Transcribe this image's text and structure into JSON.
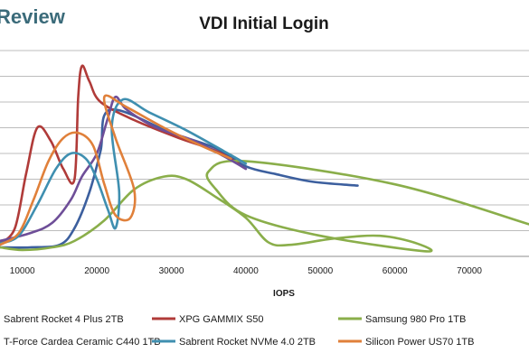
{
  "brand": {
    "label": "Review"
  },
  "chart_data": {
    "type": "line",
    "title": "VDI Initial Login",
    "xlabel": "IOPS",
    "ylabel": "",
    "xlim": [
      7000,
      78000
    ],
    "ylim": [
      0,
      8
    ],
    "x_ticks": [
      10000,
      20000,
      30000,
      40000,
      50000,
      60000,
      70000
    ],
    "y_gridlines": [
      0,
      1,
      2,
      3,
      4,
      5,
      6,
      7,
      8
    ],
    "grid": true,
    "legend_position": "bottom",
    "series": [
      {
        "name": "Sabrent Rocket 4 Plus 2TB",
        "color": "#3c5f9e",
        "points": [
          [
            7000,
            0.35
          ],
          [
            11000,
            0.35
          ],
          [
            15000,
            0.45
          ],
          [
            17000,
            1.1
          ],
          [
            19000,
            2.5
          ],
          [
            20500,
            4.1
          ],
          [
            21800,
            5.7
          ],
          [
            30000,
            4.8
          ],
          [
            36000,
            4.2
          ],
          [
            40000,
            3.5
          ],
          [
            44000,
            3.2
          ],
          [
            49000,
            2.9
          ],
          [
            55000,
            2.75
          ]
        ]
      },
      {
        "name": "XPG GAMMIX S50",
        "color": "#b03b39",
        "points": [
          [
            7000,
            0.5
          ],
          [
            9000,
            1.1
          ],
          [
            10500,
            3.2
          ],
          [
            12000,
            5.0
          ],
          [
            13800,
            4.5
          ],
          [
            15500,
            3.4
          ],
          [
            17000,
            3.0
          ],
          [
            17500,
            6.2
          ],
          [
            18000,
            7.4
          ],
          [
            19000,
            6.8
          ],
          [
            20500,
            6.0
          ],
          [
            25000,
            5.3
          ],
          [
            31000,
            4.6
          ],
          [
            36000,
            4.1
          ],
          [
            39000,
            3.6
          ]
        ]
      },
      {
        "name": "Samsung 980 Pro 1TB",
        "color": "#8aae4a",
        "points": [
          [
            7000,
            0.35
          ],
          [
            10000,
            0.25
          ],
          [
            14000,
            0.35
          ],
          [
            17000,
            0.6
          ],
          [
            21000,
            1.4
          ],
          [
            25000,
            2.6
          ],
          [
            29000,
            3.1
          ],
          [
            32000,
            3.0
          ],
          [
            36000,
            2.3
          ],
          [
            40000,
            1.5
          ],
          [
            43000,
            0.55
          ],
          [
            46000,
            0.45
          ],
          [
            52000,
            0.7
          ],
          [
            58000,
            0.8
          ],
          [
            63000,
            0.5
          ],
          [
            64000,
            0.2
          ],
          [
            50000,
            0.8
          ],
          [
            40000,
            1.6
          ],
          [
            36000,
            2.6
          ],
          [
            35000,
            3.3
          ],
          [
            40000,
            3.7
          ],
          [
            60000,
            2.8
          ],
          [
            78000,
            1.25
          ]
        ]
      },
      {
        "name": "T-Force Cardea Ceramic C440 1TB",
        "color": "#6e4e98",
        "points": [
          [
            7000,
            0.6
          ],
          [
            11000,
            0.9
          ],
          [
            14000,
            1.3
          ],
          [
            16500,
            2.2
          ],
          [
            18000,
            3.1
          ],
          [
            20000,
            4.0
          ],
          [
            21500,
            5.4
          ],
          [
            22500,
            6.2
          ],
          [
            24000,
            5.7
          ],
          [
            28000,
            5.0
          ],
          [
            33000,
            4.5
          ],
          [
            37000,
            3.9
          ],
          [
            40000,
            3.4
          ]
        ]
      },
      {
        "name": "Sabrent Rocket NVMe 4.0 2TB",
        "color": "#3f8fb0",
        "points": [
          [
            7000,
            0.5
          ],
          [
            9500,
            0.8
          ],
          [
            12000,
            2.0
          ],
          [
            14500,
            3.4
          ],
          [
            16500,
            4.0
          ],
          [
            18500,
            3.8
          ],
          [
            20000,
            3.0
          ],
          [
            21500,
            1.8
          ],
          [
            22500,
            1.1
          ],
          [
            23000,
            2.5
          ],
          [
            22000,
            5.0
          ],
          [
            23500,
            6.1
          ],
          [
            27000,
            5.6
          ],
          [
            32000,
            4.9
          ],
          [
            37000,
            4.1
          ],
          [
            40000,
            3.6
          ]
        ]
      },
      {
        "name": "Silicon Power US70 1TB",
        "color": "#e0803a",
        "points": [
          [
            7000,
            0.45
          ],
          [
            9500,
            0.9
          ],
          [
            11500,
            2.2
          ],
          [
            13500,
            3.7
          ],
          [
            15500,
            4.6
          ],
          [
            17500,
            4.8
          ],
          [
            19500,
            4.3
          ],
          [
            21000,
            2.8
          ],
          [
            22500,
            1.6
          ],
          [
            24500,
            1.5
          ],
          [
            25000,
            2.6
          ],
          [
            22500,
            4.6
          ],
          [
            21000,
            6.2
          ],
          [
            24000,
            5.8
          ],
          [
            29000,
            5.0
          ],
          [
            34000,
            4.3
          ],
          [
            38000,
            3.8
          ]
        ]
      }
    ]
  }
}
